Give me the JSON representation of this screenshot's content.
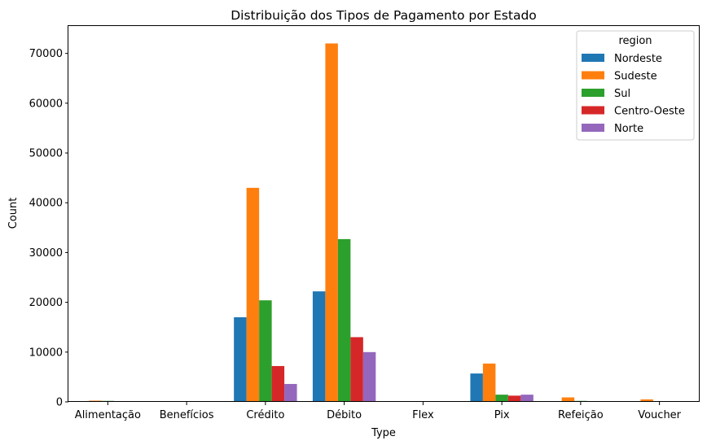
{
  "chart_data": {
    "type": "bar",
    "title": "Distribuição dos Tipos de Pagamento por Estado",
    "xlabel": "Type",
    "ylabel": "Count",
    "ylim": [
      0,
      75500
    ],
    "yticks": [
      0,
      10000,
      20000,
      30000,
      40000,
      50000,
      60000,
      70000
    ],
    "categories": [
      "Alimentação",
      "Benefícios",
      "Crédito",
      "Débito",
      "Flex",
      "Pix",
      "Refeição",
      "Voucher"
    ],
    "legend": {
      "title": "region",
      "position": "top-right"
    },
    "series": [
      {
        "name": "Nordeste",
        "color": "#1f77b4",
        "values": [
          0,
          0,
          17000,
          22200,
          0,
          5700,
          150,
          80
        ]
      },
      {
        "name": "Sudeste",
        "color": "#ff7f0e",
        "values": [
          250,
          20,
          43000,
          72000,
          10,
          7700,
          900,
          500
        ]
      },
      {
        "name": "Sul",
        "color": "#2ca02c",
        "values": [
          200,
          10,
          20400,
          32700,
          5,
          1450,
          200,
          100
        ]
      },
      {
        "name": "Centro-Oeste",
        "color": "#d62728",
        "values": [
          60,
          5,
          7200,
          13000,
          0,
          1250,
          80,
          150
        ]
      },
      {
        "name": "Norte",
        "color": "#9467bd",
        "values": [
          40,
          5,
          3600,
          10000,
          0,
          1450,
          50,
          100
        ]
      }
    ]
  }
}
